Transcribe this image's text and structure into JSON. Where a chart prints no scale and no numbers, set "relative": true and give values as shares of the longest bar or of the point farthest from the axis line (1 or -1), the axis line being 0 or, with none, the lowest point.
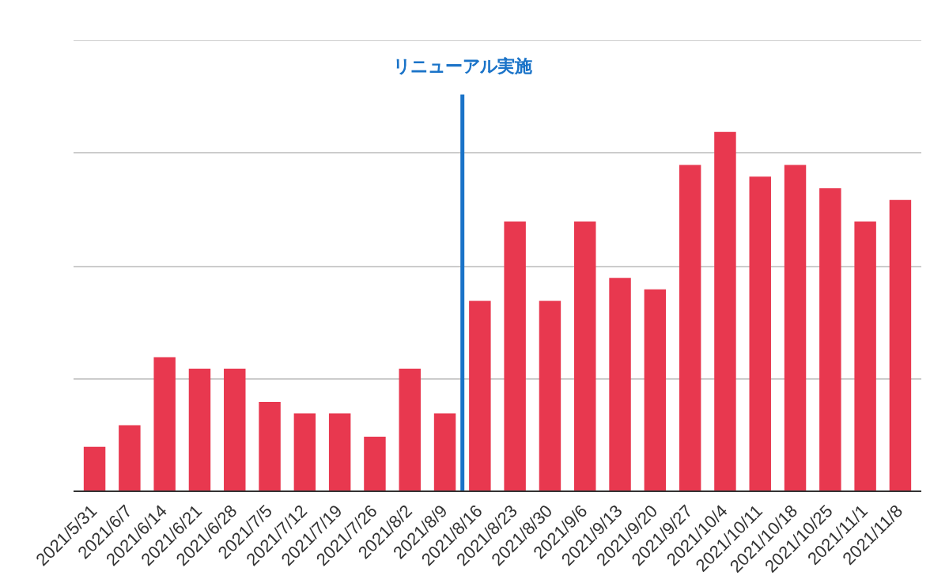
{
  "chart_data": {
    "type": "bar",
    "relative": true,
    "grid": "y",
    "color": "#e8384f",
    "categories": [
      "2021/5/31",
      "2021/6/7",
      "2021/6/14",
      "2021/6/21",
      "2021/6/28",
      "2021/7/5",
      "2021/7/12",
      "2021/7/19",
      "2021/7/26",
      "2021/8/2",
      "2021/8/9",
      "2021/8/16",
      "2021/8/23",
      "2021/8/30",
      "2021/9/6",
      "2021/9/13",
      "2021/9/20",
      "2021/9/27",
      "2021/10/4",
      "2021/10/11",
      "2021/10/18",
      "2021/10/25",
      "2021/11/1",
      "2021/11/8"
    ],
    "values": [
      0.124,
      0.184,
      0.373,
      0.341,
      0.341,
      0.249,
      0.217,
      0.217,
      0.152,
      0.341,
      0.217,
      0.53,
      0.751,
      0.53,
      0.751,
      0.594,
      0.562,
      0.908,
      1,
      0.876,
      0.908,
      0.843,
      0.751,
      0.811
    ],
    "ref_lines": [
      {
        "axis": "x",
        "value": "2021/8/16",
        "label": "リニューアル実施",
        "color": "#1a73c8"
      }
    ]
  }
}
